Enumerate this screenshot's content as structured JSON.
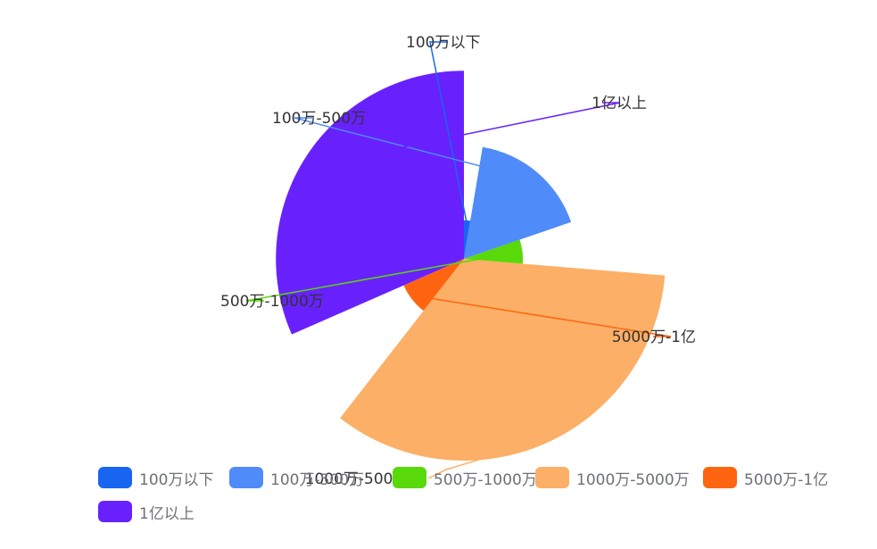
{
  "chart_data": {
    "type": "pie",
    "rose_type": "radius",
    "legend_position": "bottom",
    "series": [
      {
        "name": "100万以下",
        "value": 2,
        "color": "#1865f1"
      },
      {
        "name": "100万-500万",
        "value": 13,
        "color": "#4f8bf9"
      },
      {
        "name": "500万-1000万",
        "value": 5,
        "color": "#59d80a"
      },
      {
        "name": "1000万-5000万",
        "value": 26,
        "color": "#fcaf66"
      },
      {
        "name": "5000万-1亿",
        "value": 6,
        "color": "#ff6510"
      },
      {
        "name": "1亿以上",
        "value": 24,
        "color": "#6821fd"
      }
    ]
  },
  "overlap_label": "1000万-5000万"
}
